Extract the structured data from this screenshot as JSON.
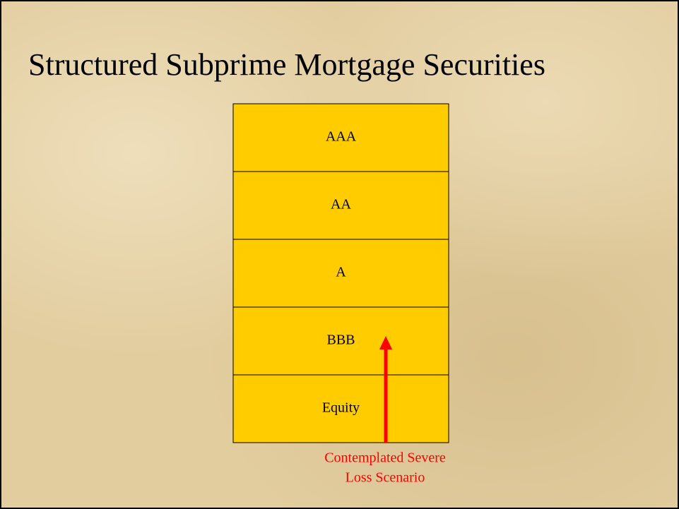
{
  "title": "Structured Subprime Mortgage Securities",
  "tranches": [
    "AAA",
    "AA",
    "A",
    "BBB",
    "Equity"
  ],
  "annotation": {
    "lines": [
      "Contemplated Severe",
      "Loss Scenario"
    ]
  }
}
